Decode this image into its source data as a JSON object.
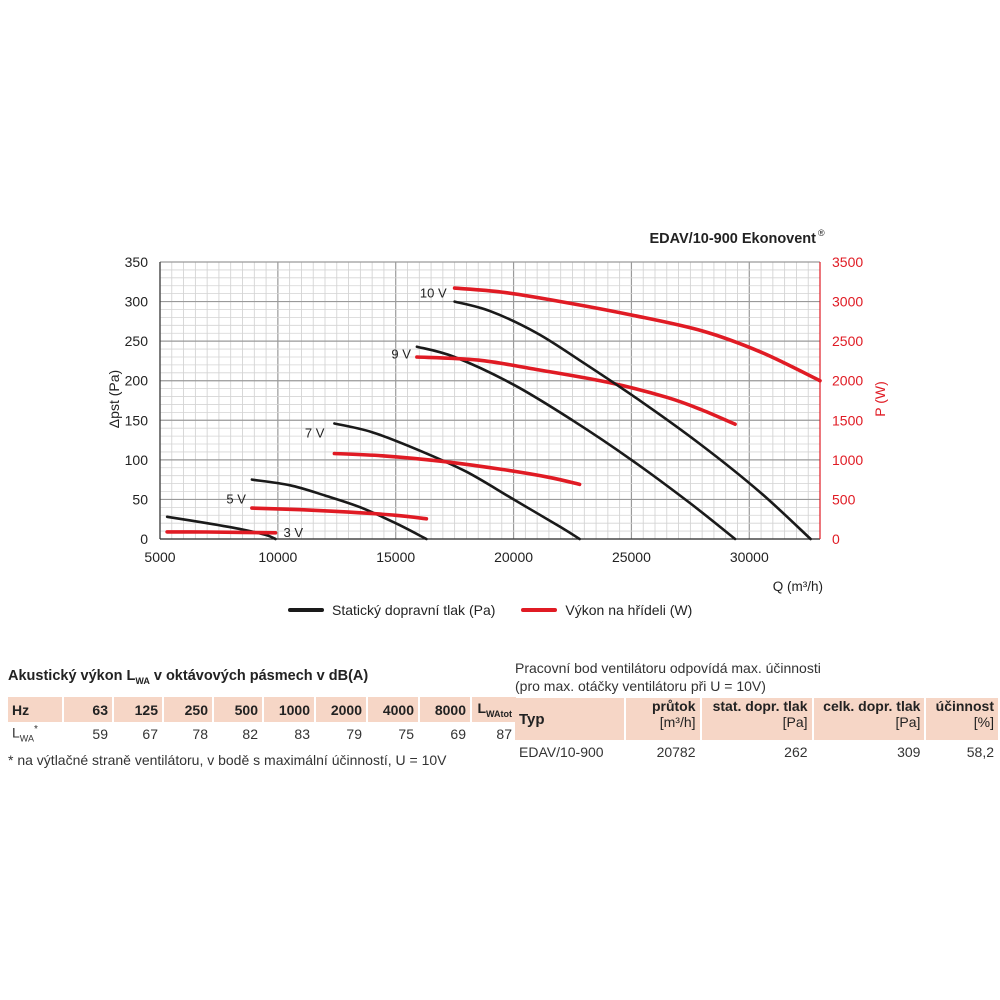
{
  "chart_data": {
    "type": "line",
    "title": "EDAV/10-900 Ekonovent",
    "title_mark": "®",
    "xlabel": "Q (m³/h)",
    "ylabel_left": "Δpst (Pa)",
    "ylabel_right": "P (W)",
    "xlim": [
      5000,
      33000
    ],
    "ylim_left": [
      0,
      350
    ],
    "ylim_right": [
      0,
      3500
    ],
    "x_ticks": [
      5000,
      10000,
      15000,
      20000,
      25000,
      30000
    ],
    "y_ticks_left": [
      0,
      50,
      100,
      150,
      200,
      250,
      300,
      350
    ],
    "y_ticks_right": [
      0,
      500,
      1000,
      1500,
      2000,
      2500,
      3000,
      3500
    ],
    "grid": true,
    "pressure_color": "#1a1a1a",
    "power_color": "#e01b24",
    "series": [
      {
        "name": "3 V",
        "kind": "pressure",
        "axis": "left",
        "x": [
          5300,
          7000,
          8500,
          9500,
          9900
        ],
        "y": [
          28,
          20,
          12,
          5,
          0
        ]
      },
      {
        "name": "3 V",
        "kind": "power",
        "axis": "right",
        "x": [
          5300,
          7000,
          8500,
          9900
        ],
        "y": [
          90,
          88,
          83,
          78
        ]
      },
      {
        "name": "5 V",
        "kind": "pressure",
        "axis": "left",
        "x": [
          8900,
          10500,
          12000,
          13500,
          15000,
          16300
        ],
        "y": [
          75,
          68,
          55,
          40,
          20,
          0
        ]
      },
      {
        "name": "5 V",
        "kind": "power",
        "axis": "right",
        "x": [
          8900,
          11000,
          13000,
          15000,
          16300
        ],
        "y": [
          390,
          370,
          340,
          300,
          255
        ]
      },
      {
        "name": "7 V",
        "kind": "pressure",
        "axis": "left",
        "x": [
          12400,
          14000,
          16000,
          18000,
          20000,
          22000,
          22800
        ],
        "y": [
          146,
          135,
          112,
          85,
          50,
          15,
          0
        ]
      },
      {
        "name": "7 V",
        "kind": "power",
        "axis": "right",
        "x": [
          12400,
          14500,
          17000,
          19500,
          21500,
          22800
        ],
        "y": [
          1080,
          1050,
          980,
          880,
          780,
          690
        ]
      },
      {
        "name": "9 V",
        "kind": "pressure",
        "axis": "left",
        "x": [
          15900,
          17500,
          20000,
          22500,
          25000,
          27500,
          29400
        ],
        "y": [
          243,
          230,
          195,
          150,
          100,
          45,
          0
        ]
      },
      {
        "name": "9 V",
        "kind": "power",
        "axis": "right",
        "x": [
          15900,
          18500,
          21000,
          24000,
          26500,
          28000,
          29400
        ],
        "y": [
          2300,
          2260,
          2140,
          1980,
          1790,
          1630,
          1450
        ]
      },
      {
        "name": "10 V",
        "kind": "pressure",
        "axis": "left",
        "x": [
          17500,
          19000,
          21000,
          23000,
          25500,
          28000,
          30500,
          32600
        ],
        "y": [
          300,
          288,
          260,
          222,
          172,
          118,
          58,
          0
        ]
      },
      {
        "name": "10 V",
        "kind": "power",
        "axis": "right",
        "x": [
          17500,
          19500,
          22000,
          25000,
          28000,
          30500,
          33000
        ],
        "y": [
          3170,
          3120,
          3000,
          2830,
          2630,
          2360,
          2000
        ]
      }
    ],
    "curve_labels": [
      "3 V",
      "5 V",
      "7 V",
      "9 V",
      "10 V"
    ]
  },
  "legend": {
    "pressure_label": "Statický dopravní tlak (Pa)",
    "power_label": "Výkon na hřídeli (W)"
  },
  "acoustic": {
    "title_pre": "Akustický výkon L",
    "title_sub": "WA",
    "title_post": " v oktávových pásmech v dB(A)",
    "header_hz": "Hz",
    "bands": [
      "63",
      "125",
      "250",
      "500",
      "1000",
      "2000",
      "4000",
      "8000"
    ],
    "total_main": "L",
    "total_sub": "WAtot",
    "row_label_main": "L",
    "row_label_sub": "WA",
    "row_label_mark": "*",
    "values": [
      "59",
      "67",
      "78",
      "82",
      "83",
      "79",
      "75",
      "69"
    ],
    "total_value": "87",
    "footnote": "* na výtlačné straně ventilátoru, v bodě s maximální účinností, U = 10V"
  },
  "workpoint": {
    "note_line1": "Pracovní bod ventilátoru odpovídá max. účinnosti",
    "note_line2": "(pro max. otáčky ventilátoru při U = 10V)",
    "col_type": "Typ",
    "col_flow": "průtok",
    "col_flow_unit": "[m³/h]",
    "col_stat": "stat. dopr. tlak",
    "col_stat_unit": "[Pa]",
    "col_total": "celk. dopr. tlak",
    "col_total_unit": "[Pa]",
    "col_eff": "účinnost",
    "col_eff_unit": "[%]",
    "row": {
      "type": "EDAV/10-900",
      "flow": "20782",
      "stat": "262",
      "total": "309",
      "eff": "58,2"
    }
  }
}
